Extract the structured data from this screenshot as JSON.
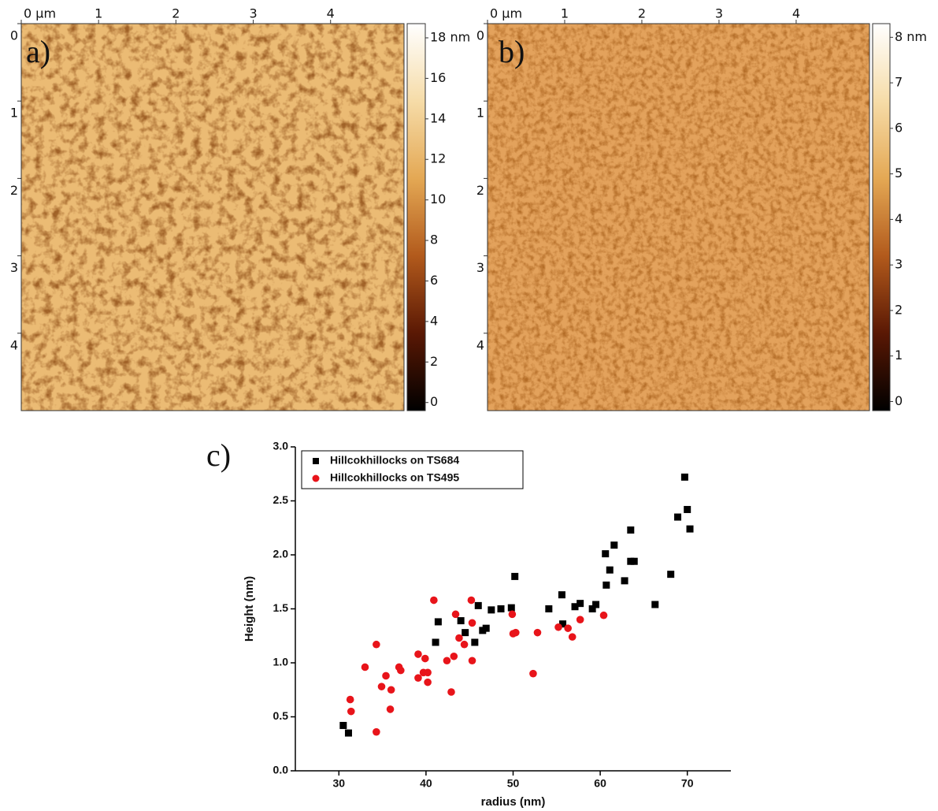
{
  "chart_data": [
    {
      "type": "heatmap",
      "label": "a)",
      "xlim": [
        0,
        4.95
      ],
      "ylim": [
        0,
        5
      ],
      "xticks": [
        {
          "value": 0,
          "label": "0 µm"
        },
        1,
        2,
        3,
        4
      ],
      "yticks": [
        0,
        1,
        2,
        3,
        4
      ],
      "clim": [
        -0.4,
        18.7
      ],
      "cticks": [
        {
          "value": 18,
          "label": "18 nm"
        },
        16,
        14,
        12,
        10,
        8,
        6,
        4,
        2,
        0
      ],
      "colormap": [
        "#000000",
        "#5a1804",
        "#b25a1c",
        "#e4a854",
        "#f6dca8",
        "#ffffff"
      ]
    },
    {
      "type": "heatmap",
      "label": "b)",
      "xlim": [
        0,
        4.95
      ],
      "ylim": [
        0,
        5
      ],
      "xticks": [
        {
          "value": 0,
          "label": "0 µm"
        },
        1,
        2,
        3,
        4
      ],
      "yticks": [
        0,
        1,
        2,
        3,
        4
      ],
      "clim": [
        -0.2,
        8.3
      ],
      "cticks": [
        {
          "value": 8,
          "label": "8 nm"
        },
        7,
        6,
        5,
        4,
        3,
        2,
        1,
        0
      ],
      "colormap": [
        "#000000",
        "#5a1804",
        "#b25a1c",
        "#e4a854",
        "#f6dca8",
        "#ffffff"
      ]
    },
    {
      "type": "scatter",
      "label": "c)",
      "x_label": "radius (nm)",
      "y_label": "Height (nm)",
      "xlim": [
        25,
        75
      ],
      "ylim": [
        0,
        3
      ],
      "xticks": [
        30,
        40,
        50,
        60,
        70
      ],
      "yticks": [
        {
          "value": 0,
          "label": "0.0"
        },
        0.5,
        {
          "value": 1,
          "label": "1.0"
        },
        1.5,
        {
          "value": 2,
          "label": "2.0"
        },
        2.5,
        {
          "value": 3,
          "label": "3.0"
        }
      ],
      "legend": "upper left",
      "series": [
        {
          "name": "Hillcokhillocks on TS684",
          "color": "#000000",
          "marker": "square",
          "x": [
            30.5,
            31.1,
            41.1,
            41.4,
            44.0,
            44.5,
            45.6,
            46.0,
            46.5,
            46.9,
            47.5,
            48.6,
            49.8,
            50.2,
            54.1,
            55.6,
            55.7,
            57.1,
            57.7,
            59.1,
            59.5,
            60.6,
            60.7,
            61.1,
            61.6,
            62.8,
            63.5,
            63.5,
            63.9,
            66.3,
            68.1,
            68.9,
            69.7,
            70.0,
            70.3
          ],
          "values": [
            0.42,
            0.35,
            1.19,
            1.38,
            1.39,
            1.28,
            1.19,
            1.53,
            1.3,
            1.32,
            1.49,
            1.5,
            1.51,
            1.8,
            1.5,
            1.63,
            1.36,
            1.52,
            1.55,
            1.5,
            1.54,
            2.01,
            1.72,
            1.86,
            2.09,
            1.76,
            1.94,
            2.23,
            1.94,
            1.54,
            1.82,
            2.35,
            2.72,
            2.42,
            2.24
          ]
        },
        {
          "name": "Hillcokhillocks on TS495",
          "color": "#e8141a",
          "marker": "circle",
          "x": [
            31.3,
            31.4,
            33.0,
            34.3,
            34.3,
            34.9,
            35.4,
            36.0,
            35.9,
            36.9,
            37.1,
            39.1,
            39.1,
            39.7,
            39.9,
            40.2,
            40.2,
            40.9,
            42.4,
            42.9,
            43.2,
            43.4,
            43.8,
            44.4,
            45.2,
            45.3,
            45.3,
            49.9,
            50.0,
            50.3,
            52.3,
            52.8,
            55.2,
            56.3,
            56.8,
            57.7,
            60.4
          ],
          "values": [
            0.66,
            0.55,
            0.96,
            1.17,
            0.36,
            0.78,
            0.88,
            0.75,
            0.57,
            0.96,
            0.93,
            1.08,
            0.86,
            0.91,
            1.04,
            0.91,
            0.82,
            1.58,
            1.02,
            0.73,
            1.06,
            1.45,
            1.23,
            1.17,
            1.58,
            1.02,
            1.37,
            1.45,
            1.27,
            1.28,
            0.9,
            1.28,
            1.33,
            1.32,
            1.24,
            1.4,
            1.44
          ]
        }
      ]
    }
  ]
}
